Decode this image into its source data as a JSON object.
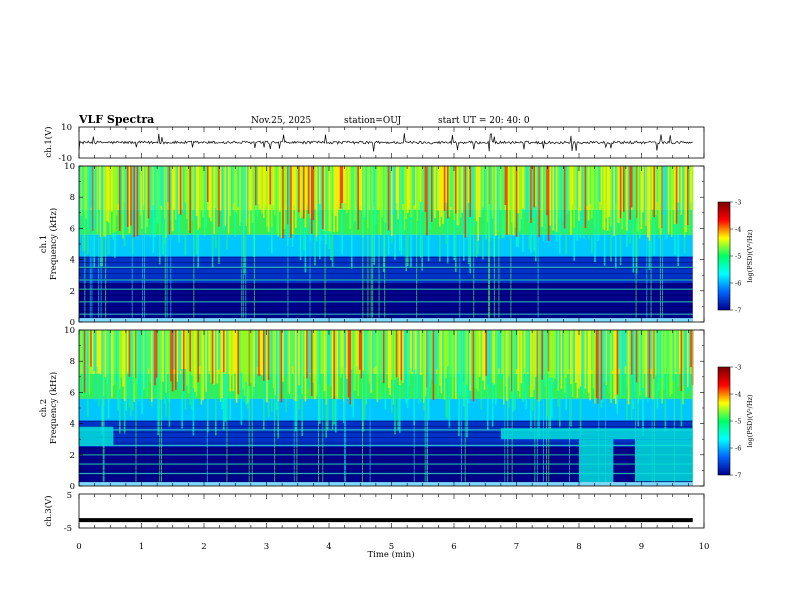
{
  "header": {
    "title": "VLF Spectra",
    "date": "Nov.25, 2025",
    "station": "station=OUJ",
    "start": "start  UT  =   20: 40: 0"
  },
  "chart_data": [
    {
      "type": "line",
      "name": "ch1-waveform",
      "ylabel": "ch.1(V)",
      "ylim": [
        -10,
        10
      ],
      "y_tick_labels": [
        "10",
        "-10"
      ],
      "x_range_min": [
        0,
        9.82
      ],
      "baseline_v": 0,
      "description_values": {
        "typical_noise_v": 1.5,
        "max_spike_v": 6
      }
    },
    {
      "type": "heatmap",
      "name": "ch1-spectrogram",
      "ylabel_top": "ch.1",
      "ylabel": "Frequency  (kHz)",
      "ylim": [
        0,
        10
      ],
      "y_ticks": [
        0,
        2,
        4,
        6,
        8,
        10
      ],
      "x_range_min": [
        0,
        9.82
      ],
      "colorbar": {
        "label": "log(PSD)(V²/Hz)",
        "range": [
          -7,
          -3
        ],
        "ticks": [
          "-3",
          "-4",
          "-5",
          "-6",
          "-7"
        ],
        "colors": [
          "#7a0000",
          "#ff0000",
          "#ffff00",
          "#00ff66",
          "#00ffff",
          "#0064ff",
          "#00008b"
        ]
      },
      "low_band_khz": 4.2,
      "interference_lines_khz": [
        0.5,
        1.3,
        2.1,
        2.7,
        3.5
      ]
    },
    {
      "type": "heatmap",
      "name": "ch2-spectrogram",
      "ylabel_top": "ch.2",
      "ylabel": "Frequency  (kHz)",
      "ylim": [
        0,
        10
      ],
      "y_ticks": [
        0,
        2,
        4,
        6,
        8,
        10
      ],
      "x_range_min": [
        0,
        9.82
      ],
      "colorbar": {
        "label": "log(PSD)(V²/Hz)",
        "range": [
          -7,
          -3
        ],
        "ticks": [
          "-3",
          "-4",
          "-5",
          "-6",
          "-7"
        ],
        "colors": [
          "#7a0000",
          "#ff0000",
          "#ffff00",
          "#00ff66",
          "#00ffff",
          "#0064ff",
          "#00008b"
        ]
      },
      "low_band_khz": 4.2,
      "interference_lines_khz": [
        0.8,
        1.4,
        2.0,
        2.6,
        3.6
      ],
      "bright_segments": [
        {
          "t0": 0,
          "t1": 0.55,
          "f0": 2.6,
          "f1": 3.8
        },
        {
          "t0": 6.75,
          "t1": 9.82,
          "f0": 3.0,
          "f1": 3.7
        },
        {
          "t0": 8.0,
          "t1": 8.55,
          "f0": 0.2,
          "f1": 3.0
        },
        {
          "t0": 8.9,
          "t1": 9.82,
          "f0": 0.3,
          "f1": 3.0
        }
      ]
    },
    {
      "type": "line",
      "name": "ch3-waveform",
      "ylabel": "ch.3(V)",
      "ylim": [
        -5,
        5
      ],
      "y_tick_labels": [
        "5",
        "-5"
      ],
      "x_range_min": [
        0,
        9.82
      ],
      "level_v": -2.7
    }
  ],
  "x_axis": {
    "label": "Time  (min)",
    "ticks": [
      "0",
      "1",
      "2",
      "3",
      "4",
      "5",
      "6",
      "7",
      "8",
      "9",
      "10"
    ],
    "range": [
      0,
      10
    ]
  }
}
